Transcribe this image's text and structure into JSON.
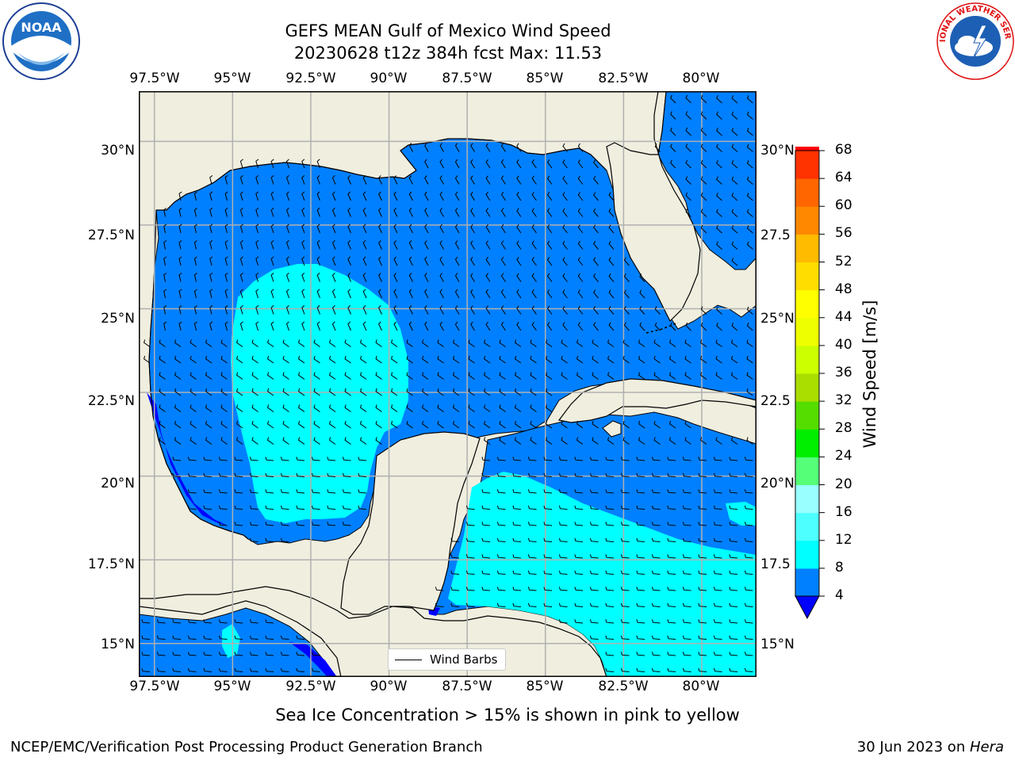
{
  "title": {
    "line1": "GEFS MEAN Gulf of Mexico Wind Speed",
    "line2": "20230628 t12z 384h fcst   Max: 11.53"
  },
  "map": {
    "lon_labels": [
      "97.5°W",
      "95°W",
      "92.5°W",
      "90°W",
      "87.5°W",
      "85°W",
      "82.5°W",
      "80°W"
    ],
    "lat_labels_left": [
      "30°N",
      "27.5°N",
      "25°N",
      "22.5°N",
      "20°N",
      "17.5°N",
      "15°N"
    ],
    "lat_labels_right": [
      "30°N",
      "27.5",
      "25°N",
      "22.5",
      "20°N",
      "17.5",
      "15°N"
    ],
    "lon_range": [
      -98,
      -78.25
    ],
    "lat_range": [
      14,
      31.5
    ],
    "colors": {
      "land": "#efeedf",
      "wind_4_8": "#0080ff",
      "wind_8_12": "#00ffff",
      "wind_0_4": "#0000ff",
      "grid": "#b0b0b0"
    }
  },
  "legend": {
    "label": "Wind Barbs"
  },
  "colorbar": {
    "label": "Wind Speed [m/s]",
    "ticks": [
      "68",
      "64",
      "60",
      "56",
      "52",
      "48",
      "44",
      "40",
      "36",
      "32",
      "28",
      "24",
      "20",
      "16",
      "12",
      "8",
      "4"
    ],
    "colors_bottom_to_top": [
      "#0080ff",
      "#00ffff",
      "#4dffff",
      "#99ffff",
      "#55ff77",
      "#00ee00",
      "#55dd00",
      "#aadd00",
      "#ccff00",
      "#eeff00",
      "#ffff00",
      "#ffdd00",
      "#ffbb00",
      "#ff8800",
      "#ff6600",
      "#ff3300",
      "#ff0000"
    ],
    "under_color": "#0000ff"
  },
  "note": "Sea Ice Concentration > 15% is shown in pink to yellow",
  "footer": {
    "left": "NCEP/EMC/Verification Post Processing Product Generation Branch",
    "right_prefix": "30 Jun 2023 on ",
    "right_machine": "Hera"
  },
  "logos": {
    "left": {
      "icon": "noaa-logo",
      "text": "NOAA"
    },
    "right": {
      "icon": "national-weather-service-logo",
      "text": "NATIONAL WEATHER SERVICE"
    }
  }
}
